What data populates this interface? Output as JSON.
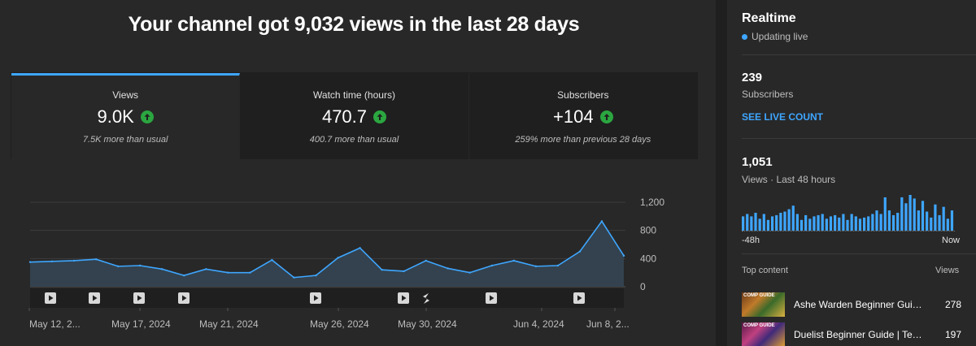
{
  "header": {
    "title": "Your channel got 9,032 views in the last 28 days"
  },
  "cards": [
    {
      "label": "Views",
      "value": "9.0K",
      "note": "7.5K more than usual",
      "active": true,
      "trend_icon": "arrow-up-icon"
    },
    {
      "label": "Watch time (hours)",
      "value": "470.7",
      "note": "400.7 more than usual",
      "active": false,
      "trend_icon": "arrow-up-icon"
    },
    {
      "label": "Subscribers",
      "value": "+104",
      "note": "259% more than previous 28 days",
      "active": false,
      "trend_icon": "arrow-up-icon"
    }
  ],
  "chart_data": {
    "type": "area",
    "series": [
      {
        "values": [
          350,
          360,
          370,
          390,
          290,
          300,
          250,
          160,
          250,
          200,
          200,
          380,
          130,
          160,
          410,
          550,
          240,
          220,
          370,
          260,
          200,
          300,
          370,
          290,
          300,
          500,
          930,
          440
        ]
      }
    ],
    "ylim": [
      0,
      1200
    ],
    "yticks": [
      "1,200",
      "800",
      "400",
      "0"
    ],
    "xticks": [
      "May 12, 2...",
      "May 17, 2024",
      "May 21, 2024",
      "May 26, 2024",
      "May 30, 2024",
      "Jun 4, 2024",
      "Jun 8, 2..."
    ],
    "marker_icons": [
      "play-icon",
      "play-icon",
      "play-icon",
      "play-icon",
      "play-icon",
      "play-icon",
      "shorts-icon",
      "play-icon",
      "play-icon"
    ],
    "grid": true,
    "colors": {
      "line": "#3ea6ff",
      "fill": "#33424e"
    }
  },
  "realtime": {
    "title": "Realtime",
    "status": "Updating live",
    "subscribers_count": "239",
    "subscribers_label": "Subscribers",
    "see_live_label": "SEE LIVE COUNT",
    "views_count": "1,051",
    "views_label": "Views · Last 48 hours",
    "mini_chart_data": {
      "type": "bar",
      "values": [
        12,
        14,
        12,
        15,
        10,
        14,
        9,
        12,
        13,
        15,
        16,
        18,
        21,
        14,
        9,
        13,
        10,
        12,
        13,
        14,
        10,
        12,
        13,
        11,
        14,
        9,
        14,
        12,
        10,
        11,
        12,
        14,
        17,
        14,
        28,
        17,
        13,
        15,
        28,
        23,
        30,
        27,
        17,
        25,
        16,
        11,
        22,
        13,
        20,
        10,
        17
      ]
    },
    "axis_start": "-48h",
    "axis_end": "Now",
    "top_content_label": "Top content",
    "top_views_label": "Views",
    "top_content": [
      {
        "title": "Ashe Warden Beginner Guide | Te...",
        "views": "278",
        "thumb_text": "COMP GUIDE"
      },
      {
        "title": "Duelist Beginner Guide | Team Co...",
        "views": "197",
        "thumb_text": "COMP GUIDE"
      }
    ]
  }
}
